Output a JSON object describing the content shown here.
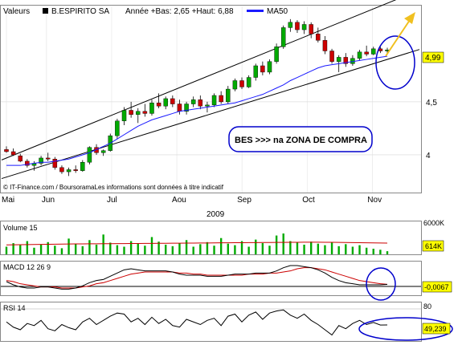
{
  "header": {
    "left_label": "Valeurs",
    "stock_name": "B.ESPIRITO SA",
    "stats": "Année +Bas: 2,65 +Haut: 6,88",
    "ma_label": "MA50"
  },
  "credit": "© IT-Finance.com / BoursoramaLes informations sont données à titre indicatif",
  "annotation": "BES >>> na ZONA DE COMPRA",
  "year_label": "2009",
  "colors": {
    "up": "#00aa00",
    "down": "#cc0000",
    "ma": "#1a1aff",
    "channel": "#000000",
    "circle": "#0000cc",
    "arrow": "#f0c020",
    "last_tag": "#ffff00",
    "macd_signal": "#cc0000"
  },
  "chart_data": [
    {
      "type": "candlestick",
      "x_tick_labels": [
        "Mai",
        "Jun",
        "Jul",
        "Aou",
        "Sep",
        "Oct",
        "Nov"
      ],
      "y_tick_labels": [
        "4",
        "4,5"
      ],
      "ylim": [
        3.75,
        5.4
      ],
      "last_value_label": "4,99",
      "last_value": 4.99,
      "series": [
        {
          "name": "MA50",
          "values": [
            3.9,
            3.9,
            3.9,
            3.91,
            3.92,
            3.93,
            3.93,
            3.94,
            3.95,
            3.96,
            3.98,
            4.0,
            4.02,
            4.05,
            4.08,
            4.11,
            4.15,
            4.19,
            4.23,
            4.27,
            4.3,
            4.33,
            4.35,
            4.37,
            4.39,
            4.41,
            4.42,
            4.43,
            4.44,
            4.45,
            4.46,
            4.47,
            4.48,
            4.49,
            4.51,
            4.53,
            4.55,
            4.57,
            4.6,
            4.63,
            4.66,
            4.7,
            4.73,
            4.76,
            4.79,
            4.82,
            4.84,
            4.85,
            4.86,
            4.87,
            4.88,
            4.89,
            4.9,
            4.91,
            4.92,
            4.93
          ]
        }
      ],
      "candles": [
        [
          4.05,
          4.08,
          4.02,
          4.03
        ],
        [
          4.03,
          4.06,
          3.99,
          4.0
        ],
        [
          3.99,
          4.01,
          3.93,
          3.94
        ],
        [
          3.94,
          3.96,
          3.88,
          3.9
        ],
        [
          3.9,
          3.94,
          3.85,
          3.92
        ],
        [
          3.92,
          3.99,
          3.9,
          3.97
        ],
        [
          3.97,
          4.02,
          3.94,
          3.96
        ],
        [
          3.96,
          3.98,
          3.86,
          3.88
        ],
        [
          3.88,
          3.9,
          3.82,
          3.84
        ],
        [
          3.84,
          3.88,
          3.8,
          3.86
        ],
        [
          3.86,
          3.9,
          3.83,
          3.85
        ],
        [
          3.85,
          3.95,
          3.84,
          3.93
        ],
        [
          3.93,
          4.08,
          3.91,
          4.07
        ],
        [
          4.07,
          4.1,
          4.0,
          4.02
        ],
        [
          4.02,
          4.05,
          3.99,
          4.04
        ],
        [
          4.04,
          4.2,
          4.03,
          4.18
        ],
        [
          4.18,
          4.34,
          4.15,
          4.32
        ],
        [
          4.32,
          4.45,
          4.28,
          4.42
        ],
        [
          4.42,
          4.5,
          4.35,
          4.38
        ],
        [
          4.38,
          4.44,
          4.3,
          4.41
        ],
        [
          4.41,
          4.48,
          4.36,
          4.39
        ],
        [
          4.39,
          4.52,
          4.37,
          4.49
        ],
        [
          4.49,
          4.58,
          4.44,
          4.46
        ],
        [
          4.46,
          4.55,
          4.43,
          4.53
        ],
        [
          4.53,
          4.56,
          4.45,
          4.48
        ],
        [
          4.48,
          4.52,
          4.38,
          4.41
        ],
        [
          4.41,
          4.5,
          4.38,
          4.48
        ],
        [
          4.48,
          4.55,
          4.45,
          4.52
        ],
        [
          4.52,
          4.56,
          4.43,
          4.46
        ],
        [
          4.46,
          4.5,
          4.4,
          4.47
        ],
        [
          4.47,
          4.58,
          4.45,
          4.56
        ],
        [
          4.56,
          4.6,
          4.48,
          4.5
        ],
        [
          4.5,
          4.65,
          4.48,
          4.62
        ],
        [
          4.62,
          4.72,
          4.6,
          4.7
        ],
        [
          4.7,
          4.73,
          4.62,
          4.64
        ],
        [
          4.64,
          4.75,
          4.63,
          4.73
        ],
        [
          4.73,
          4.86,
          4.7,
          4.84
        ],
        [
          4.84,
          4.88,
          4.75,
          4.78
        ],
        [
          4.78,
          4.9,
          4.76,
          4.88
        ],
        [
          4.88,
          5.05,
          4.86,
          5.02
        ],
        [
          5.02,
          5.22,
          5.0,
          5.2
        ],
        [
          5.2,
          5.28,
          5.16,
          5.25
        ],
        [
          5.25,
          5.27,
          5.15,
          5.18
        ],
        [
          5.18,
          5.26,
          5.14,
          5.23
        ],
        [
          5.23,
          5.25,
          5.1,
          5.14
        ],
        [
          5.14,
          5.2,
          5.06,
          5.08
        ],
        [
          5.08,
          5.12,
          4.95,
          4.98
        ],
        [
          4.98,
          5.0,
          4.86,
          4.88
        ],
        [
          4.88,
          4.94,
          4.78,
          4.92
        ],
        [
          4.92,
          4.96,
          4.83,
          4.86
        ],
        [
          4.86,
          4.94,
          4.84,
          4.91
        ],
        [
          4.91,
          4.99,
          4.89,
          4.97
        ],
        [
          4.97,
          5.03,
          4.93,
          4.95
        ],
        [
          4.95,
          5.02,
          4.94,
          5.0
        ],
        [
          5.0,
          5.02,
          4.96,
          4.98
        ],
        [
          4.98,
          5.01,
          4.95,
          4.99
        ]
      ]
    },
    {
      "type": "bar",
      "title": "Volume 15",
      "y_tick_labels": [
        "6000K"
      ],
      "ylim": [
        0,
        6000
      ],
      "last_value_label": "614K",
      "values": [
        1500,
        2200,
        1800,
        2600,
        1300,
        1900,
        2400,
        1700,
        1200,
        3100,
        2000,
        1600,
        2800,
        1900,
        3900,
        2300,
        1800,
        1500,
        2600,
        2100,
        1700,
        3400,
        2500,
        1900,
        1600,
        2200,
        2800,
        1500,
        2000,
        2400,
        1700,
        3200,
        2100,
        1800,
        2600,
        1500,
        2900,
        2200,
        1700,
        3700,
        4100,
        2600,
        2300,
        1900,
        2500,
        2100,
        1800,
        2400,
        1600,
        2000,
        1500,
        1800,
        1300,
        1100,
        900,
        614
      ],
      "series": [
        {
          "name": "avg",
          "values": [
            1850,
            1880,
            1900,
            1920,
            1930,
            1950,
            1970,
            1990,
            2010,
            2030,
            2050,
            2060,
            2070,
            2080,
            2090,
            2100,
            2110,
            2120,
            2130,
            2140,
            2150,
            2160,
            2170,
            2180,
            2190,
            2200,
            2210,
            2220,
            2230,
            2240,
            2250,
            2260,
            2270,
            2280,
            2290,
            2300,
            2310,
            2320,
            2330,
            2340,
            2350,
            2360,
            2370,
            2380,
            2390,
            2380,
            2370,
            2360,
            2350,
            2330,
            2310,
            2290,
            2270,
            2250,
            2230,
            2210
          ]
        }
      ]
    },
    {
      "type": "line",
      "title": "MACD 12 26 9",
      "last_value_label": "-0,0067",
      "ylim": [
        -0.1,
        0.2
      ],
      "series": [
        {
          "name": "MACD",
          "values": [
            0.02,
            -0.01,
            -0.03,
            -0.04,
            -0.04,
            -0.03,
            -0.03,
            -0.04,
            -0.05,
            -0.05,
            -0.04,
            -0.02,
            0.01,
            0.03,
            0.04,
            0.07,
            0.1,
            0.13,
            0.14,
            0.13,
            0.12,
            0.12,
            0.12,
            0.12,
            0.11,
            0.09,
            0.08,
            0.08,
            0.08,
            0.07,
            0.07,
            0.07,
            0.08,
            0.09,
            0.09,
            0.09,
            0.1,
            0.1,
            0.1,
            0.12,
            0.15,
            0.17,
            0.17,
            0.16,
            0.15,
            0.13,
            0.1,
            0.06,
            0.03,
            0.01,
            0.0,
            -0.01,
            -0.01,
            -0.01,
            -0.01,
            -0.0067
          ]
        },
        {
          "name": "signal",
          "values": [
            0.03,
            0.02,
            0.0,
            -0.01,
            -0.02,
            -0.03,
            -0.03,
            -0.03,
            -0.04,
            -0.04,
            -0.04,
            -0.03,
            -0.02,
            0.0,
            0.01,
            0.03,
            0.05,
            0.07,
            0.09,
            0.1,
            0.11,
            0.11,
            0.11,
            0.11,
            0.11,
            0.1,
            0.1,
            0.09,
            0.09,
            0.08,
            0.08,
            0.08,
            0.08,
            0.08,
            0.08,
            0.09,
            0.09,
            0.09,
            0.1,
            0.1,
            0.11,
            0.12,
            0.14,
            0.15,
            0.15,
            0.14,
            0.13,
            0.11,
            0.09,
            0.07,
            0.05,
            0.03,
            0.02,
            0.01,
            0.0,
            -0.005
          ]
        }
      ]
    },
    {
      "type": "line",
      "title": "RSI 14",
      "y_tick_labels": [
        "80"
      ],
      "ylim": [
        20,
        80
      ],
      "last_value_label": "49,239",
      "series": [
        {
          "name": "RSI",
          "values": [
            55,
            45,
            40,
            52,
            48,
            58,
            42,
            38,
            50,
            44,
            40,
            55,
            62,
            50,
            58,
            66,
            72,
            70,
            55,
            62,
            50,
            64,
            52,
            60,
            48,
            45,
            60,
            55,
            50,
            58,
            62,
            48,
            66,
            70,
            55,
            68,
            74,
            60,
            72,
            76,
            78,
            68,
            62,
            70,
            58,
            50,
            40,
            30,
            48,
            42,
            52,
            58,
            50,
            54,
            49,
            49.239
          ]
        }
      ]
    }
  ]
}
